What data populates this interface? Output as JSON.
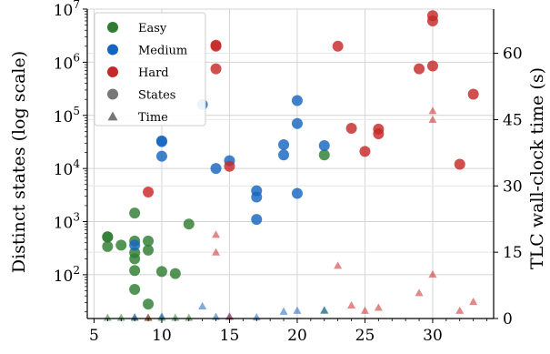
{
  "chart_data": {
    "type": "scatter",
    "xlabel": "",
    "ylabel": "Distinct states (log scale)",
    "y2label": "TLC wall-clock time (s)",
    "xlim": [
      4.5,
      34.5
    ],
    "ylim_log": [
      15.0,
      10000000.0
    ],
    "y2lim": [
      0,
      70
    ],
    "y_scale": "log",
    "grid": true,
    "x_ticks": [
      5,
      10,
      15,
      20,
      25,
      30
    ],
    "x_tick_labels": [
      "5",
      "10",
      "15",
      "20",
      "25",
      "30"
    ],
    "y_ticks": [
      100,
      1000,
      10000,
      100000,
      1000000,
      10000000
    ],
    "y_tick_labels": [
      {
        "base": "10",
        "exp": "2"
      },
      {
        "base": "10",
        "exp": "3"
      },
      {
        "base": "10",
        "exp": "4"
      },
      {
        "base": "10",
        "exp": "5"
      },
      {
        "base": "10",
        "exp": "6"
      },
      {
        "base": "10",
        "exp": "7"
      }
    ],
    "y2_ticks": [
      0,
      15,
      30,
      45,
      60
    ],
    "y2_tick_labels": [
      "0",
      "15",
      "30",
      "45",
      "60"
    ],
    "legend": {
      "placement": "top-left",
      "entries": [
        {
          "label": "Easy",
          "marker": "circle",
          "color": "#2e7d32"
        },
        {
          "label": "Medium",
          "marker": "circle",
          "color": "#1565c0"
        },
        {
          "label": "Hard",
          "marker": "circle",
          "color": "#c62828"
        },
        {
          "label": "States",
          "marker": "circle",
          "color": "#777777"
        },
        {
          "label": "Time",
          "marker": "triangle",
          "color": "#777777"
        }
      ]
    },
    "series": [
      {
        "difficulty": "easy",
        "metric": "states",
        "color": "#2e7d32",
        "points": [
          [
            6,
            520
          ],
          [
            6,
            510
          ],
          [
            6,
            340
          ],
          [
            7,
            360
          ],
          [
            8,
            1450
          ],
          [
            8,
            430
          ],
          [
            8,
            260
          ],
          [
            8,
            200
          ],
          [
            8,
            120
          ],
          [
            8,
            53
          ],
          [
            9,
            430
          ],
          [
            9,
            290
          ],
          [
            9,
            28
          ],
          [
            10,
            115
          ],
          [
            11,
            105
          ],
          [
            12,
            900
          ],
          [
            22,
            18000
          ]
        ]
      },
      {
        "difficulty": "medium",
        "metric": "states",
        "color": "#1565c0",
        "points": [
          [
            8,
            360
          ],
          [
            10,
            33000
          ],
          [
            10,
            32000
          ],
          [
            10,
            17000
          ],
          [
            13,
            160000
          ],
          [
            14,
            10000
          ],
          [
            15,
            14000
          ],
          [
            17,
            3800
          ],
          [
            17,
            2900
          ],
          [
            17,
            1100
          ],
          [
            19,
            28000
          ],
          [
            19,
            18000
          ],
          [
            20,
            190000
          ],
          [
            20,
            70000
          ],
          [
            20,
            3400
          ],
          [
            22,
            27000
          ]
        ]
      },
      {
        "difficulty": "hard",
        "metric": "states",
        "color": "#c62828",
        "points": [
          [
            9,
            3600
          ],
          [
            14,
            2100000
          ],
          [
            14,
            2000000
          ],
          [
            14,
            750000
          ],
          [
            15,
            11000
          ],
          [
            23,
            2000000
          ],
          [
            24,
            57000
          ],
          [
            25,
            21000
          ],
          [
            26,
            55000
          ],
          [
            26,
            45000
          ],
          [
            29,
            750000
          ],
          [
            30,
            7500000
          ],
          [
            30,
            6000000
          ],
          [
            30,
            850000
          ],
          [
            32,
            12000
          ],
          [
            33,
            250000
          ]
        ]
      },
      {
        "difficulty": "easy",
        "metric": "time",
        "color": "#2e7d32",
        "points": [
          [
            6,
            0.2
          ],
          [
            7,
            0.2
          ],
          [
            8,
            0.2
          ],
          [
            9,
            0.2
          ],
          [
            10,
            0.2
          ],
          [
            11,
            0.2
          ],
          [
            12,
            0.2
          ],
          [
            22,
            1.8
          ]
        ]
      },
      {
        "difficulty": "medium",
        "metric": "time",
        "color": "#1565c0",
        "points": [
          [
            8,
            0.3
          ],
          [
            10,
            0.5
          ],
          [
            13,
            2.8
          ],
          [
            14,
            0.4
          ],
          [
            15,
            0.5
          ],
          [
            17,
            0.3
          ],
          [
            19,
            1.6
          ],
          [
            20,
            1.8
          ],
          [
            22,
            1.9
          ]
        ]
      },
      {
        "difficulty": "hard",
        "metric": "time",
        "color": "#c62828",
        "points": [
          [
            9,
            0.2
          ],
          [
            14,
            19
          ],
          [
            14,
            15
          ],
          [
            15,
            0.4
          ],
          [
            23,
            12
          ],
          [
            24,
            3
          ],
          [
            25,
            1.8
          ],
          [
            26,
            2.5
          ],
          [
            29,
            5.8
          ],
          [
            30,
            47
          ],
          [
            30,
            45
          ],
          [
            30,
            10
          ],
          [
            32,
            1.8
          ],
          [
            33,
            3.8
          ]
        ]
      }
    ]
  }
}
